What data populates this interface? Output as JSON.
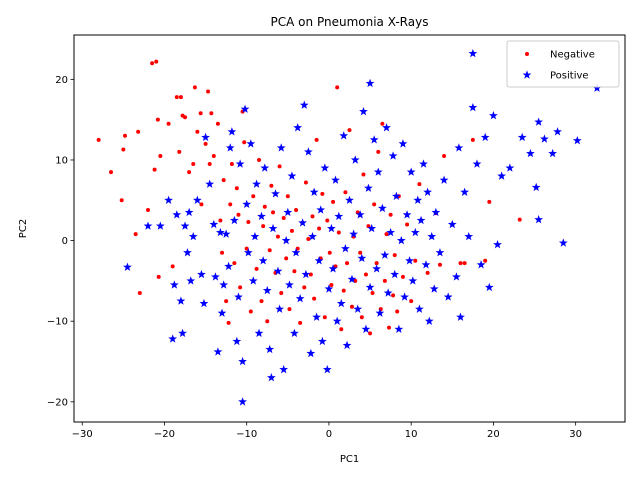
{
  "chart_data": {
    "type": "scatter",
    "title": "PCA on Pneumonia X-Rays",
    "xlabel": "PC1",
    "ylabel": "PC2",
    "xlim": [
      -31,
      36
    ],
    "ylim": [
      -22.5,
      25.5
    ],
    "xticks": [
      -30,
      -20,
      -10,
      0,
      10,
      20,
      30
    ],
    "yticks": [
      -20,
      -10,
      0,
      10,
      20
    ],
    "grid": false,
    "legend_position": "top-right",
    "series": [
      {
        "name": "Negative",
        "marker": "dot",
        "color": "#ff0000",
        "points": [
          [
            -28,
            12.5
          ],
          [
            -26.5,
            8.5
          ],
          [
            -25,
            11.3
          ],
          [
            -24.8,
            13
          ],
          [
            -25.2,
            5
          ],
          [
            -23.5,
            0.8
          ],
          [
            -23.2,
            13.5
          ],
          [
            -23,
            -6.5
          ],
          [
            -22,
            3.8
          ],
          [
            -21.5,
            22
          ],
          [
            -21,
            22.2
          ],
          [
            -21.2,
            8.8
          ],
          [
            -20.8,
            15
          ],
          [
            -20.5,
            10.5
          ],
          [
            -20.7,
            -4.5
          ],
          [
            -19.5,
            14.5
          ],
          [
            -19,
            -3.2
          ],
          [
            -18.5,
            17.8
          ],
          [
            -18,
            17.8
          ],
          [
            -18.2,
            11
          ],
          [
            -17.8,
            15.5
          ],
          [
            -17.5,
            15.3
          ],
          [
            -17,
            8.5
          ],
          [
            -16.5,
            9.5
          ],
          [
            -16.3,
            19
          ],
          [
            -16,
            13.5
          ],
          [
            -15.6,
            15.8
          ],
          [
            -15.5,
            4.5
          ],
          [
            -15,
            12
          ],
          [
            -14.7,
            18.5
          ],
          [
            -14.5,
            9.5
          ],
          [
            -14.3,
            15.8
          ],
          [
            -14,
            10.5
          ],
          [
            -13.5,
            14.5
          ],
          [
            -13.2,
            2.5
          ],
          [
            -13,
            -1.5
          ],
          [
            -12.8,
            7.5
          ],
          [
            -12.5,
            -7.5
          ],
          [
            -12,
            4.5
          ],
          [
            -12.2,
            -10.2
          ],
          [
            -11.8,
            9.5
          ],
          [
            -11.5,
            -2.8
          ],
          [
            -11.2,
            6.5
          ],
          [
            -11,
            3.2
          ],
          [
            -10.8,
            -5.8
          ],
          [
            -10.5,
            16
          ],
          [
            -10.3,
            12.2
          ],
          [
            -10,
            -1
          ],
          [
            -9.8,
            2.3
          ],
          [
            -9.5,
            -8.8
          ],
          [
            -9.2,
            5.5
          ],
          [
            -9,
            0.5
          ],
          [
            -8.8,
            -3.5
          ],
          [
            -8.5,
            10
          ],
          [
            -8.2,
            -7.5
          ],
          [
            -8,
            1.8
          ],
          [
            -7.8,
            4.2
          ],
          [
            -7.5,
            -10
          ],
          [
            -7.2,
            -1.2
          ],
          [
            -7,
            6.8
          ],
          [
            -6.8,
            3.5
          ],
          [
            -6.5,
            -4
          ],
          [
            -6.2,
            0.5
          ],
          [
            -6,
            9.2
          ],
          [
            -5.8,
            -6.5
          ],
          [
            -5.5,
            2.8
          ],
          [
            -5.2,
            -2.2
          ],
          [
            -5,
            5.5
          ],
          [
            -4.8,
            -8.5
          ],
          [
            -4.5,
            1.2
          ],
          [
            -4.2,
            -3.8
          ],
          [
            -4,
            3.8
          ],
          [
            -3.8,
            -1
          ],
          [
            -3.5,
            -10.2
          ],
          [
            -3.2,
            2.2
          ],
          [
            -3,
            -5.8
          ],
          [
            -2.8,
            7.2
          ],
          [
            -2.5,
            0.2
          ],
          [
            -2.2,
            -4.2
          ],
          [
            -2,
            3
          ],
          [
            -1.8,
            -7.2
          ],
          [
            -1.5,
            12.5
          ],
          [
            -1.2,
            1.5
          ],
          [
            -1,
            -2.2
          ],
          [
            -0.8,
            5.8
          ],
          [
            -0.5,
            -9.5
          ],
          [
            -0.2,
            2.5
          ],
          [
            0.1,
            -1.5
          ],
          [
            0.3,
            -5.5
          ],
          [
            0.5,
            4.8
          ],
          [
            0.8,
            -3.2
          ],
          [
            1,
            19
          ],
          [
            1.2,
            1
          ],
          [
            1.5,
            -11
          ],
          [
            1.8,
            -6.2
          ],
          [
            2,
            6
          ],
          [
            2.2,
            -2.8
          ],
          [
            2.5,
            13.7
          ],
          [
            2.8,
            -8.2
          ],
          [
            3,
            0.5
          ],
          [
            3.2,
            -5
          ],
          [
            3.5,
            3.5
          ],
          [
            3.8,
            -1.5
          ],
          [
            4,
            -9.5
          ],
          [
            4.2,
            8.2
          ],
          [
            4.5,
            -4.2
          ],
          [
            4.8,
            1.8
          ],
          [
            5,
            -11.5
          ],
          [
            5.3,
            -6.5
          ],
          [
            5.5,
            4.5
          ],
          [
            5.8,
            -2.8
          ],
          [
            6,
            11
          ],
          [
            6.3,
            -8.5
          ],
          [
            6.5,
            14.5
          ],
          [
            6.8,
            -5
          ],
          [
            7,
            0.8
          ],
          [
            7.3,
            -10.8
          ],
          [
            7.5,
            3.2
          ],
          [
            7.8,
            -6.8
          ],
          [
            8,
            -1.8
          ],
          [
            8.3,
            -8.8
          ],
          [
            8.5,
            5.5
          ],
          [
            9,
            -4.5
          ],
          [
            9.5,
            2
          ],
          [
            10,
            -7.5
          ],
          [
            10.5,
            -2.5
          ],
          [
            11,
            7
          ],
          [
            12,
            -4
          ],
          [
            13,
            3.4
          ],
          [
            13.5,
            -3
          ],
          [
            14,
            10.5
          ],
          [
            15,
            2
          ],
          [
            16,
            -2.8
          ],
          [
            16.5,
            -2.8
          ],
          [
            17.5,
            12.5
          ],
          [
            19,
            -2.5
          ],
          [
            19.5,
            4.8
          ],
          [
            23.2,
            2.6
          ]
        ]
      },
      {
        "name": "Positive",
        "marker": "star",
        "color": "#0000ff",
        "points": [
          [
            -24.5,
            -3.3
          ],
          [
            -22,
            1.8
          ],
          [
            -20.5,
            1.8
          ],
          [
            -19.5,
            5
          ],
          [
            -19,
            -12.2
          ],
          [
            -18.8,
            -5.5
          ],
          [
            -18.5,
            3.2
          ],
          [
            -18,
            -7.5
          ],
          [
            -17.8,
            -11.5
          ],
          [
            -17.5,
            1.8
          ],
          [
            -17.2,
            -1.5
          ],
          [
            -17,
            3.5
          ],
          [
            -16.8,
            -5
          ],
          [
            -16.5,
            0.5
          ],
          [
            -16,
            5
          ],
          [
            -15.5,
            -4.2
          ],
          [
            -15.2,
            -7.8
          ],
          [
            -15,
            12.8
          ],
          [
            -14.5,
            7
          ],
          [
            -14,
            2
          ],
          [
            -13.8,
            -4.5
          ],
          [
            -13.5,
            -13.8
          ],
          [
            -13.2,
            1
          ],
          [
            -13,
            -9
          ],
          [
            -12.8,
            -5.5
          ],
          [
            -12.5,
            0.8
          ],
          [
            -12.2,
            -3.2
          ],
          [
            -12,
            11.5
          ],
          [
            -11.8,
            13.5
          ],
          [
            -11.5,
            2.5
          ],
          [
            -11.2,
            -12.5
          ],
          [
            -11,
            -7
          ],
          [
            -10.8,
            9.5
          ],
          [
            -10.5,
            -15
          ],
          [
            -10.5,
            -20
          ],
          [
            -10.2,
            16.3
          ],
          [
            -10,
            4.5
          ],
          [
            -9.8,
            -1.5
          ],
          [
            -9.5,
            12
          ],
          [
            -9.2,
            -5
          ],
          [
            -9,
            0.5
          ],
          [
            -8.8,
            7
          ],
          [
            -8.5,
            -11.5
          ],
          [
            -8.2,
            3
          ],
          [
            -8,
            -2.5
          ],
          [
            -7.8,
            9
          ],
          [
            -7.5,
            -6.2
          ],
          [
            -7.2,
            -13.5
          ],
          [
            -7,
            -17
          ],
          [
            -6.8,
            1.5
          ],
          [
            -6.5,
            5.8
          ],
          [
            -6.2,
            -3.8
          ],
          [
            -6,
            -8.5
          ],
          [
            -5.8,
            11.5
          ],
          [
            -5.5,
            -16
          ],
          [
            -5.2,
            0
          ],
          [
            -5,
            3.5
          ],
          [
            -4.8,
            -5.5
          ],
          [
            -4.5,
            8
          ],
          [
            -4.2,
            -11.5
          ],
          [
            -4,
            -1.5
          ],
          [
            -3.8,
            14
          ],
          [
            -3.5,
            -7.2
          ],
          [
            -3.2,
            2.2
          ],
          [
            -3,
            16.8
          ],
          [
            -2.8,
            -4.2
          ],
          [
            -2.5,
            11
          ],
          [
            -2.2,
            -14
          ],
          [
            -2,
            0.5
          ],
          [
            -1.8,
            6
          ],
          [
            -1.5,
            -9.5
          ],
          [
            -1.2,
            -2.5
          ],
          [
            -1,
            3.8
          ],
          [
            -0.8,
            -12.5
          ],
          [
            -0.5,
            9
          ],
          [
            -0.2,
            -16
          ],
          [
            0,
            -6
          ],
          [
            0.3,
            1.5
          ],
          [
            0.5,
            -3.5
          ],
          [
            0.8,
            7.5
          ],
          [
            1,
            -10
          ],
          [
            1.2,
            3
          ],
          [
            1.5,
            -7.8
          ],
          [
            1.8,
            13
          ],
          [
            2,
            -1
          ],
          [
            2.2,
            -13
          ],
          [
            2.5,
            5
          ],
          [
            2.8,
            -4.8
          ],
          [
            3,
            0.8
          ],
          [
            3.2,
            10
          ],
          [
            3.5,
            -8.5
          ],
          [
            3.8,
            3.2
          ],
          [
            4,
            -2.2
          ],
          [
            4.2,
            16
          ],
          [
            4.5,
            -11
          ],
          [
            4.8,
            6.5
          ],
          [
            5,
            -5.8
          ],
          [
            5,
            19.5
          ],
          [
            5.2,
            1.5
          ],
          [
            5.5,
            12.5
          ],
          [
            5.8,
            -3.5
          ],
          [
            6,
            8.5
          ],
          [
            6.2,
            -9
          ],
          [
            6.5,
            4
          ],
          [
            6.8,
            -1.8
          ],
          [
            7,
            14
          ],
          [
            7.2,
            -6.5
          ],
          [
            7.5,
            1
          ],
          [
            7.8,
            10.5
          ],
          [
            8,
            -4.2
          ],
          [
            8.2,
            5.5
          ],
          [
            8.5,
            -11
          ],
          [
            8.8,
            0
          ],
          [
            9,
            12
          ],
          [
            9.2,
            -7
          ],
          [
            9.5,
            3.2
          ],
          [
            9.8,
            -2.5
          ],
          [
            10,
            8.5
          ],
          [
            10.2,
            -5
          ],
          [
            10.5,
            1
          ],
          [
            10.8,
            5
          ],
          [
            11,
            -8.5
          ],
          [
            11.2,
            2.5
          ],
          [
            11.5,
            9.5
          ],
          [
            11.8,
            -3
          ],
          [
            12,
            6
          ],
          [
            12.2,
            -10
          ],
          [
            12.5,
            0.5
          ],
          [
            12.8,
            -6
          ],
          [
            13,
            3.5
          ],
          [
            13.5,
            -1.5
          ],
          [
            14,
            7.5
          ],
          [
            14.5,
            -7
          ],
          [
            15,
            2
          ],
          [
            15.5,
            -4.5
          ],
          [
            15.8,
            11.5
          ],
          [
            16,
            -9.5
          ],
          [
            16.5,
            6
          ],
          [
            17,
            0.5
          ],
          [
            17.5,
            16.5
          ],
          [
            17.5,
            23.2
          ],
          [
            18,
            9.5
          ],
          [
            18.5,
            -3
          ],
          [
            19,
            12.8
          ],
          [
            19.5,
            -5.8
          ],
          [
            20,
            15.5
          ],
          [
            20.5,
            -0.5
          ],
          [
            21,
            8
          ],
          [
            22,
            9
          ],
          [
            23.5,
            12.8
          ],
          [
            24.5,
            10.8
          ],
          [
            25.2,
            6.6
          ],
          [
            25.5,
            14.7
          ],
          [
            25.5,
            2.6
          ],
          [
            26.2,
            12.6
          ],
          [
            27.2,
            10.8
          ],
          [
            27.8,
            13.5
          ],
          [
            28.5,
            -0.3
          ],
          [
            30.2,
            12.4
          ],
          [
            32.6,
            18.9
          ]
        ]
      }
    ]
  }
}
